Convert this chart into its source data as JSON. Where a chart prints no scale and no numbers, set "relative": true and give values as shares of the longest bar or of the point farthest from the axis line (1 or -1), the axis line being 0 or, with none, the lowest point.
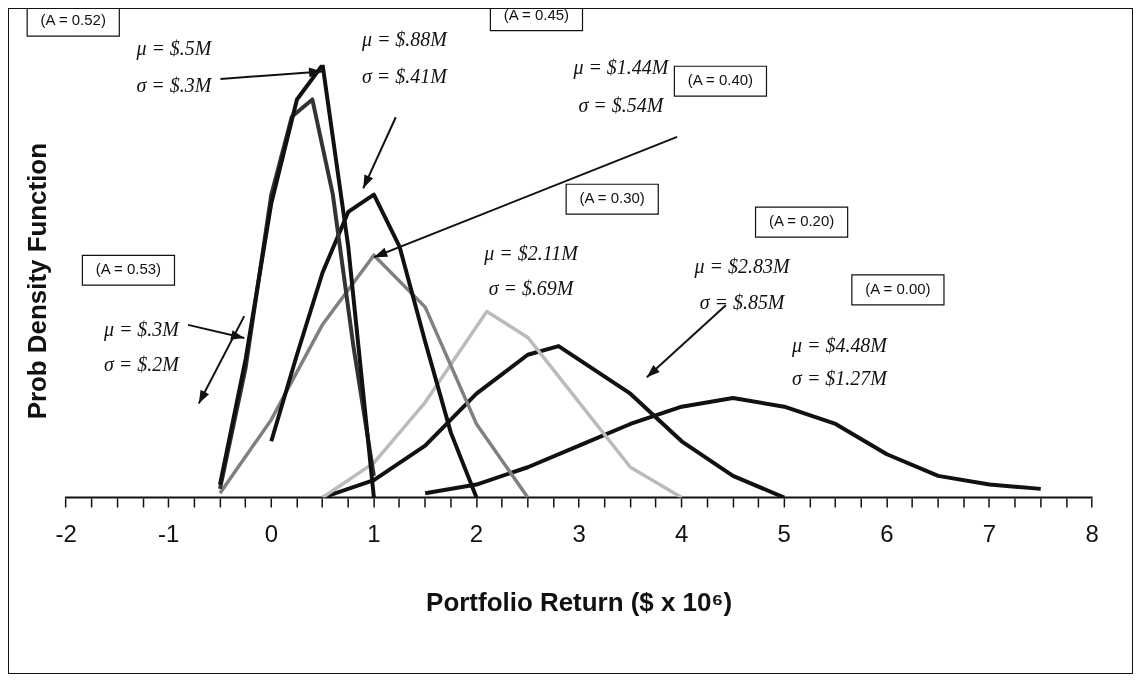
{
  "chart_data": {
    "type": "line",
    "relative": true,
    "xlabel": "Portfolio Return ($ x 10⁶)",
    "ylabel": "Prob Density Function",
    "xlim": [
      -2,
      8
    ],
    "xticks": [
      -2,
      {
        "value": -1.75,
        "label": null
      },
      {
        "value": -1.5,
        "label": null
      },
      {
        "value": -1.25,
        "label": null
      },
      -1,
      {
        "value": -0.75,
        "label": null
      },
      {
        "value": -0.5,
        "label": null
      },
      {
        "value": -0.25,
        "label": null
      },
      0,
      {
        "value": 0.25,
        "label": null
      },
      {
        "value": 0.5,
        "label": null
      },
      {
        "value": 0.75,
        "label": null
      },
      1,
      {
        "value": 1.25,
        "label": null
      },
      {
        "value": 1.5,
        "label": null
      },
      {
        "value": 1.75,
        "label": null
      },
      2,
      {
        "value": 2.25,
        "label": null
      },
      {
        "value": 2.5,
        "label": null
      },
      {
        "value": 2.75,
        "label": null
      },
      3,
      {
        "value": 3.25,
        "label": null
      },
      {
        "value": 3.5,
        "label": null
      },
      {
        "value": 3.75,
        "label": null
      },
      4,
      {
        "value": 4.25,
        "label": null
      },
      {
        "value": 4.5,
        "label": null
      },
      {
        "value": 4.75,
        "label": null
      },
      5,
      {
        "value": 5.25,
        "label": null
      },
      {
        "value": 5.5,
        "label": null
      },
      {
        "value": 5.75,
        "label": null
      },
      6,
      {
        "value": 6.25,
        "label": null
      },
      {
        "value": 6.5,
        "label": null
      },
      {
        "value": 6.75,
        "label": null
      },
      7,
      {
        "value": 7.25,
        "label": null
      },
      {
        "value": 7.5,
        "label": null
      },
      {
        "value": 7.75,
        "label": null
      },
      8
    ],
    "grid": false,
    "legend": false,
    "marker": "none",
    "line_style": "solid",
    "series": [
      {
        "color": "#111111",
        "x": [
          -0.5,
          -0.25,
          0,
          0.25,
          0.5,
          0.75,
          1
        ],
        "values": [
          0.03,
          0.32,
          0.68,
          0.92,
          1,
          0.58,
          0
        ]
      },
      {
        "color": "#333333",
        "x": [
          -0.5,
          -0.25,
          0,
          0.2,
          0.4,
          0.6,
          0.8,
          1
        ],
        "values": [
          0.02,
          0.3,
          0.7,
          0.88,
          0.92,
          0.7,
          0.35,
          0.05
        ]
      },
      {
        "color": "#111111",
        "x": [
          0,
          0.25,
          0.5,
          0.75,
          1,
          1.25,
          1.5,
          1.75,
          2
        ],
        "values": [
          0.13,
          0.33,
          0.52,
          0.66,
          0.7,
          0.58,
          0.36,
          0.15,
          0
        ]
      },
      {
        "color": "#808080",
        "x": [
          -0.5,
          0,
          0.5,
          1,
          1.5,
          2,
          2.5
        ],
        "values": [
          0.01,
          0.18,
          0.4,
          0.56,
          0.44,
          0.17,
          0
        ]
      },
      {
        "color": "#bbbbbb",
        "x": [
          0.5,
          1,
          1.5,
          2.1,
          2.5,
          3,
          3.5,
          4
        ],
        "values": [
          0,
          0.08,
          0.22,
          0.43,
          0.37,
          0.22,
          0.07,
          0
        ]
      },
      {
        "color": "#111111",
        "x": [
          0.5,
          1,
          1.5,
          2,
          2.5,
          2.8,
          3.5,
          4,
          4.5,
          5
        ],
        "values": [
          0,
          0.04,
          0.12,
          0.24,
          0.33,
          0.35,
          0.24,
          0.13,
          0.05,
          0
        ]
      },
      {
        "color": "#111111",
        "x": [
          1.5,
          2,
          2.5,
          3,
          3.5,
          4,
          4.5,
          5,
          5.5,
          6,
          6.5,
          7,
          7.5
        ],
        "values": [
          0.01,
          0.03,
          0.07,
          0.12,
          0.17,
          0.21,
          0.23,
          0.21,
          0.17,
          0.1,
          0.05,
          0.03,
          0.02
        ]
      }
    ],
    "annotations": [
      "(A = 0.52)",
      "μ = $.5M",
      "σ = $.3M",
      "μ = $.88M",
      "σ = $.41M",
      "(A = 0.45)",
      "μ = $1.44M",
      "σ = $.54M",
      "(A = 0.40)",
      "(A = 0.30)",
      "μ = $2.11M",
      "σ = $.69M",
      "(A = 0.20)",
      "μ = $2.83M",
      "σ = $.85M",
      "(A = 0.00)",
      "μ = $4.48M",
      "σ = $1.27M",
      "(A = 0.53)",
      "μ = $.3M",
      "σ = $.2M"
    ]
  }
}
